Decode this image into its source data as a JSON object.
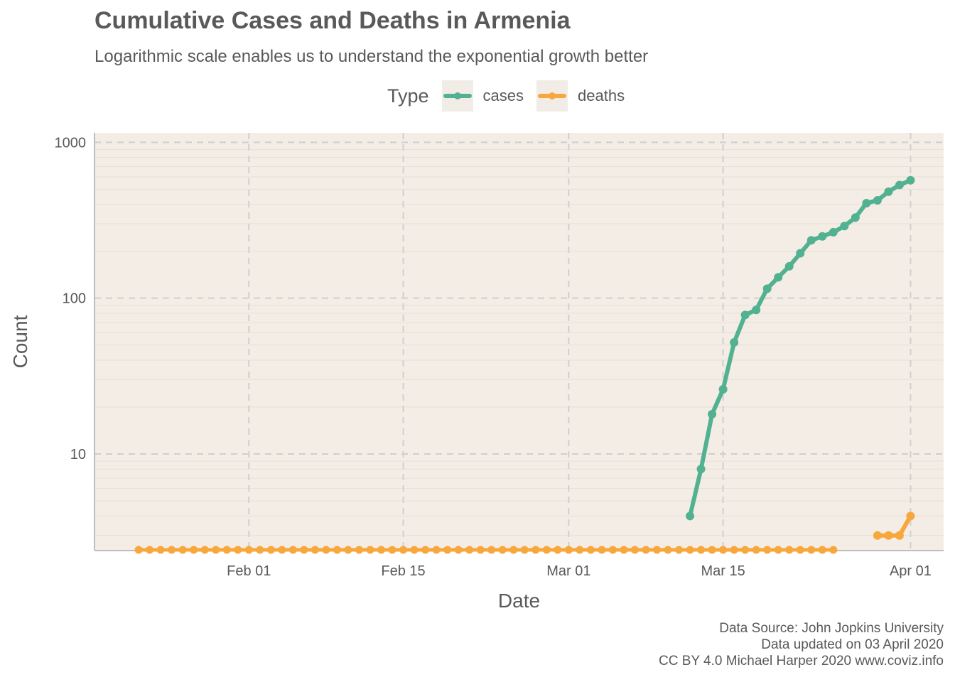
{
  "title": "Cumulative Cases and Deaths in Armenia",
  "subtitle": "Logarithmic scale enables us to understand the exponential growth better",
  "legend": {
    "title": "Type",
    "items": [
      {
        "label": "cases",
        "color": "#52b191"
      },
      {
        "label": "deaths",
        "color": "#f7a73b"
      }
    ]
  },
  "caption": [
    "Data Source: John Jopkins University",
    "Data updated on 03 April 2020",
    "CC BY 4.0 Michael Harper 2020 www.coviz.info"
  ],
  "chart_data": {
    "type": "line",
    "title": "Cumulative Cases and Deaths in Armenia",
    "xlabel": "Date",
    "ylabel": "Count",
    "y_scale": "log10",
    "ylim": [
      2.4,
      1150
    ],
    "y_ticks": [
      10,
      100,
      1000
    ],
    "y_tick_labels": [
      "10",
      "100",
      "1000"
    ],
    "x_ticks": [
      "2020-02-01",
      "2020-02-15",
      "2020-03-01",
      "2020-03-15",
      "2020-04-01"
    ],
    "x_tick_labels": [
      "Feb 01",
      "Feb 15",
      "Mar 01",
      "Mar 15",
      "Apr 01"
    ],
    "x_range": [
      "2020-01-18",
      "2020-04-04"
    ],
    "floor_note": "zero counts drawn at bottom of panel",
    "series": [
      {
        "name": "cases",
        "color": "#52b191",
        "points": [
          [
            "2020-03-12",
            4
          ],
          [
            "2020-03-13",
            8
          ],
          [
            "2020-03-14",
            18
          ],
          [
            "2020-03-15",
            26
          ],
          [
            "2020-03-16",
            52
          ],
          [
            "2020-03-17",
            78
          ],
          [
            "2020-03-18",
            84
          ],
          [
            "2020-03-19",
            115
          ],
          [
            "2020-03-20",
            136
          ],
          [
            "2020-03-21",
            160
          ],
          [
            "2020-03-22",
            194
          ],
          [
            "2020-03-23",
            235
          ],
          [
            "2020-03-24",
            249
          ],
          [
            "2020-03-25",
            265
          ],
          [
            "2020-03-26",
            290
          ],
          [
            "2020-03-27",
            329
          ],
          [
            "2020-03-28",
            407
          ],
          [
            "2020-03-29",
            424
          ],
          [
            "2020-03-30",
            482
          ],
          [
            "2020-03-31",
            532
          ],
          [
            "2020-04-01",
            571
          ]
        ]
      },
      {
        "name": "deaths",
        "color": "#f7a73b",
        "zero_run": {
          "start": "2020-01-22",
          "end": "2020-03-25"
        },
        "points": [
          [
            "2020-03-29",
            3
          ],
          [
            "2020-03-30",
            3
          ],
          [
            "2020-03-31",
            3
          ],
          [
            "2020-04-01",
            4
          ]
        ]
      }
    ]
  }
}
